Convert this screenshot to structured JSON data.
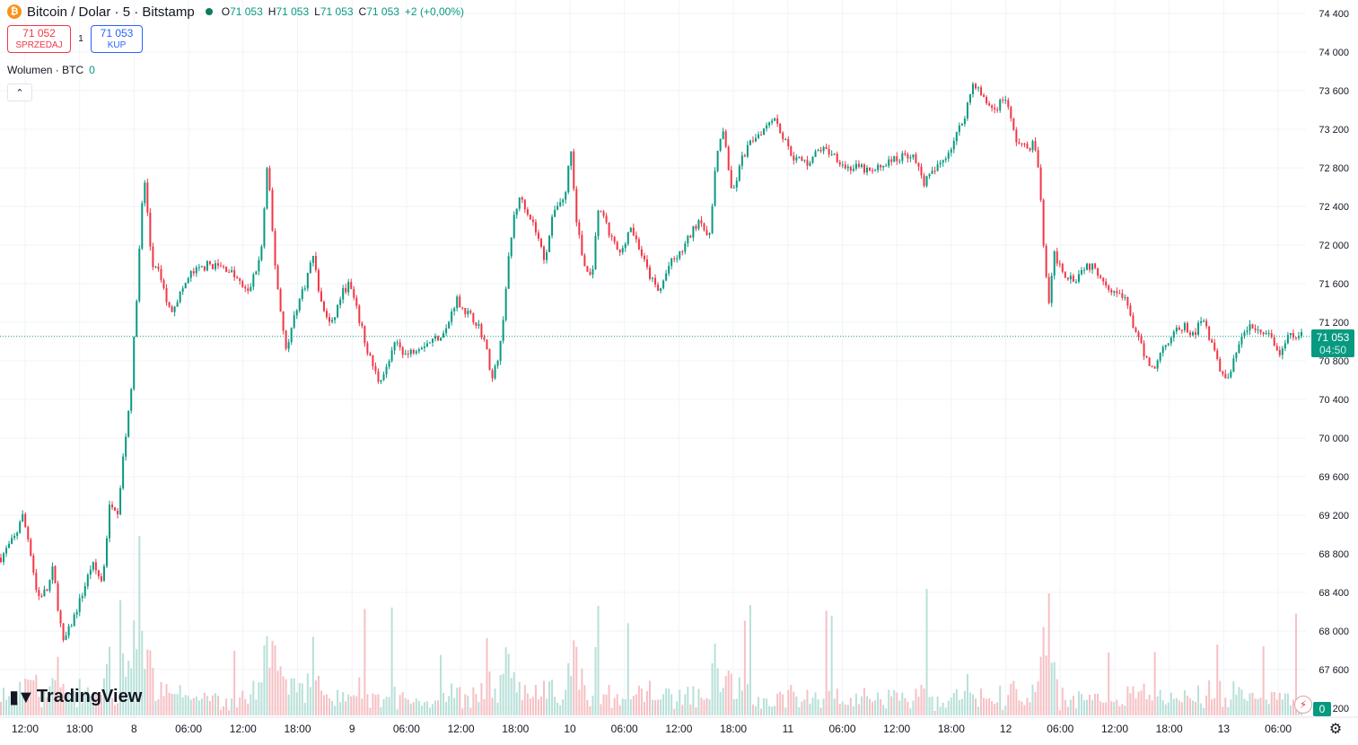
{
  "header": {
    "icon_letter": "₿",
    "title": "Bitcoin / Dolar · 5 · Bitstamp",
    "ohlc": {
      "o_label": "O",
      "o": "71 053",
      "h_label": "H",
      "h": "71 053",
      "l_label": "L",
      "l": "71 053",
      "c_label": "C",
      "c": "71 053",
      "change": "+2 (+0,00%)"
    }
  },
  "trade": {
    "sell_price": "71 052",
    "sell_label": "SPRZEDAJ",
    "spread": "1",
    "buy_price": "71 053",
    "buy_label": "KUP"
  },
  "volume_indicator": {
    "label": "Wolumen · BTC",
    "value": "0"
  },
  "icons": {
    "collapse": "chevron-up-icon",
    "bolt": "lightning-icon",
    "settings": "gear-icon",
    "logo": "tradingview-logo-icon"
  },
  "logo_text": "TradingView",
  "last_price": {
    "price": "71 053",
    "countdown": "04:50"
  },
  "volume_last": "0",
  "colors": {
    "up": "#089981",
    "down": "#f23645",
    "up_vol": "#b8e0d8",
    "down_vol": "#f6c0c4",
    "grid": "#f0f3fa"
  },
  "chart_data": {
    "type": "candlestick",
    "y_ticks": [
      "74 400",
      "74 000",
      "73 600",
      "73 200",
      "72 800",
      "72 400",
      "72 000",
      "71 600",
      "71 200",
      "70 800",
      "70 400",
      "70 000",
      "69 600",
      "69 200",
      "68 800",
      "68 400",
      "68 000",
      "67 600",
      "67 200"
    ],
    "ylim": [
      67200,
      74400
    ],
    "x_ticks": [
      "12:00",
      "18:00",
      "8",
      "06:00",
      "12:00",
      "18:00",
      "9",
      "06:00",
      "12:00",
      "18:00",
      "10",
      "06:00",
      "12:00",
      "18:00",
      "11",
      "06:00",
      "12:00",
      "18:00",
      "12",
      "06:00",
      "12:00",
      "18:00",
      "13",
      "06:00"
    ],
    "last_price": 71053,
    "close_path": [
      [
        0,
        68760
      ],
      [
        0.012,
        69000
      ],
      [
        0.016,
        69230
      ],
      [
        0.022,
        68900
      ],
      [
        0.028,
        68350
      ],
      [
        0.036,
        68430
      ],
      [
        0.04,
        68650
      ],
      [
        0.044,
        68240
      ],
      [
        0.048,
        67870
      ],
      [
        0.055,
        68100
      ],
      [
        0.063,
        68400
      ],
      [
        0.07,
        68700
      ],
      [
        0.078,
        68500
      ],
      [
        0.084,
        69350
      ],
      [
        0.09,
        69250
      ],
      [
        0.094,
        69800
      ],
      [
        0.1,
        70500
      ],
      [
        0.105,
        71600
      ],
      [
        0.11,
        72750
      ],
      [
        0.116,
        71800
      ],
      [
        0.122,
        71700
      ],
      [
        0.13,
        71300
      ],
      [
        0.138,
        71500
      ],
      [
        0.146,
        71700
      ],
      [
        0.16,
        71800
      ],
      [
        0.175,
        71750
      ],
      [
        0.19,
        71500
      ],
      [
        0.2,
        71900
      ],
      [
        0.205,
        72850
      ],
      [
        0.21,
        71900
      ],
      [
        0.216,
        71200
      ],
      [
        0.22,
        70900
      ],
      [
        0.226,
        71300
      ],
      [
        0.234,
        71600
      ],
      [
        0.24,
        71900
      ],
      [
        0.246,
        71400
      ],
      [
        0.254,
        71150
      ],
      [
        0.262,
        71500
      ],
      [
        0.268,
        71600
      ],
      [
        0.274,
        71300
      ],
      [
        0.282,
        70900
      ],
      [
        0.29,
        70600
      ],
      [
        0.296,
        70700
      ],
      [
        0.304,
        71000
      ],
      [
        0.312,
        70850
      ],
      [
        0.32,
        70950
      ],
      [
        0.33,
        71000
      ],
      [
        0.342,
        71100
      ],
      [
        0.35,
        71450
      ],
      [
        0.358,
        71300
      ],
      [
        0.366,
        71200
      ],
      [
        0.372,
        71000
      ],
      [
        0.378,
        70600
      ],
      [
        0.384,
        70950
      ],
      [
        0.39,
        71800
      ],
      [
        0.395,
        72350
      ],
      [
        0.4,
        72500
      ],
      [
        0.41,
        72200
      ],
      [
        0.418,
        71850
      ],
      [
        0.426,
        72400
      ],
      [
        0.434,
        72500
      ],
      [
        0.438,
        73050
      ],
      [
        0.442,
        72300
      ],
      [
        0.448,
        71800
      ],
      [
        0.454,
        71650
      ],
      [
        0.46,
        72400
      ],
      [
        0.468,
        72100
      ],
      [
        0.476,
        71900
      ],
      [
        0.484,
        72200
      ],
      [
        0.49,
        72000
      ],
      [
        0.498,
        71700
      ],
      [
        0.506,
        71500
      ],
      [
        0.514,
        71800
      ],
      [
        0.522,
        71900
      ],
      [
        0.53,
        72100
      ],
      [
        0.538,
        72300
      ],
      [
        0.544,
        72000
      ],
      [
        0.55,
        72900
      ],
      [
        0.556,
        73200
      ],
      [
        0.562,
        72500
      ],
      [
        0.57,
        72900
      ],
      [
        0.578,
        73100
      ],
      [
        0.586,
        73200
      ],
      [
        0.594,
        73350
      ],
      [
        0.602,
        73100
      ],
      [
        0.61,
        72900
      ],
      [
        0.62,
        72850
      ],
      [
        0.63,
        73000
      ],
      [
        0.64,
        72950
      ],
      [
        0.65,
        72800
      ],
      [
        0.66,
        72800
      ],
      [
        0.67,
        72750
      ],
      [
        0.68,
        72850
      ],
      [
        0.69,
        72900
      ],
      [
        0.7,
        72950
      ],
      [
        0.71,
        72650
      ],
      [
        0.72,
        72800
      ],
      [
        0.73,
        73000
      ],
      [
        0.74,
        73300
      ],
      [
        0.748,
        73700
      ],
      [
        0.756,
        73500
      ],
      [
        0.764,
        73400
      ],
      [
        0.772,
        73550
      ],
      [
        0.78,
        73100
      ],
      [
        0.788,
        73000
      ],
      [
        0.794,
        73050
      ],
      [
        0.798,
        72800
      ],
      [
        0.802,
        71900
      ],
      [
        0.806,
        71400
      ],
      [
        0.81,
        71900
      ],
      [
        0.818,
        71700
      ],
      [
        0.826,
        71650
      ],
      [
        0.834,
        71800
      ],
      [
        0.842,
        71750
      ],
      [
        0.85,
        71600
      ],
      [
        0.858,
        71500
      ],
      [
        0.866,
        71400
      ],
      [
        0.872,
        71100
      ],
      [
        0.878,
        70900
      ],
      [
        0.886,
        70700
      ],
      [
        0.894,
        70950
      ],
      [
        0.902,
        71100
      ],
      [
        0.91,
        71150
      ],
      [
        0.918,
        71050
      ],
      [
        0.924,
        71300
      ],
      [
        0.93,
        71000
      ],
      [
        0.938,
        70700
      ],
      [
        0.944,
        70600
      ],
      [
        0.952,
        71000
      ],
      [
        0.96,
        71150
      ],
      [
        0.968,
        71100
      ],
      [
        0.976,
        71050
      ],
      [
        0.984,
        70850
      ],
      [
        0.99,
        71050
      ],
      [
        1.0,
        71053
      ]
    ]
  }
}
